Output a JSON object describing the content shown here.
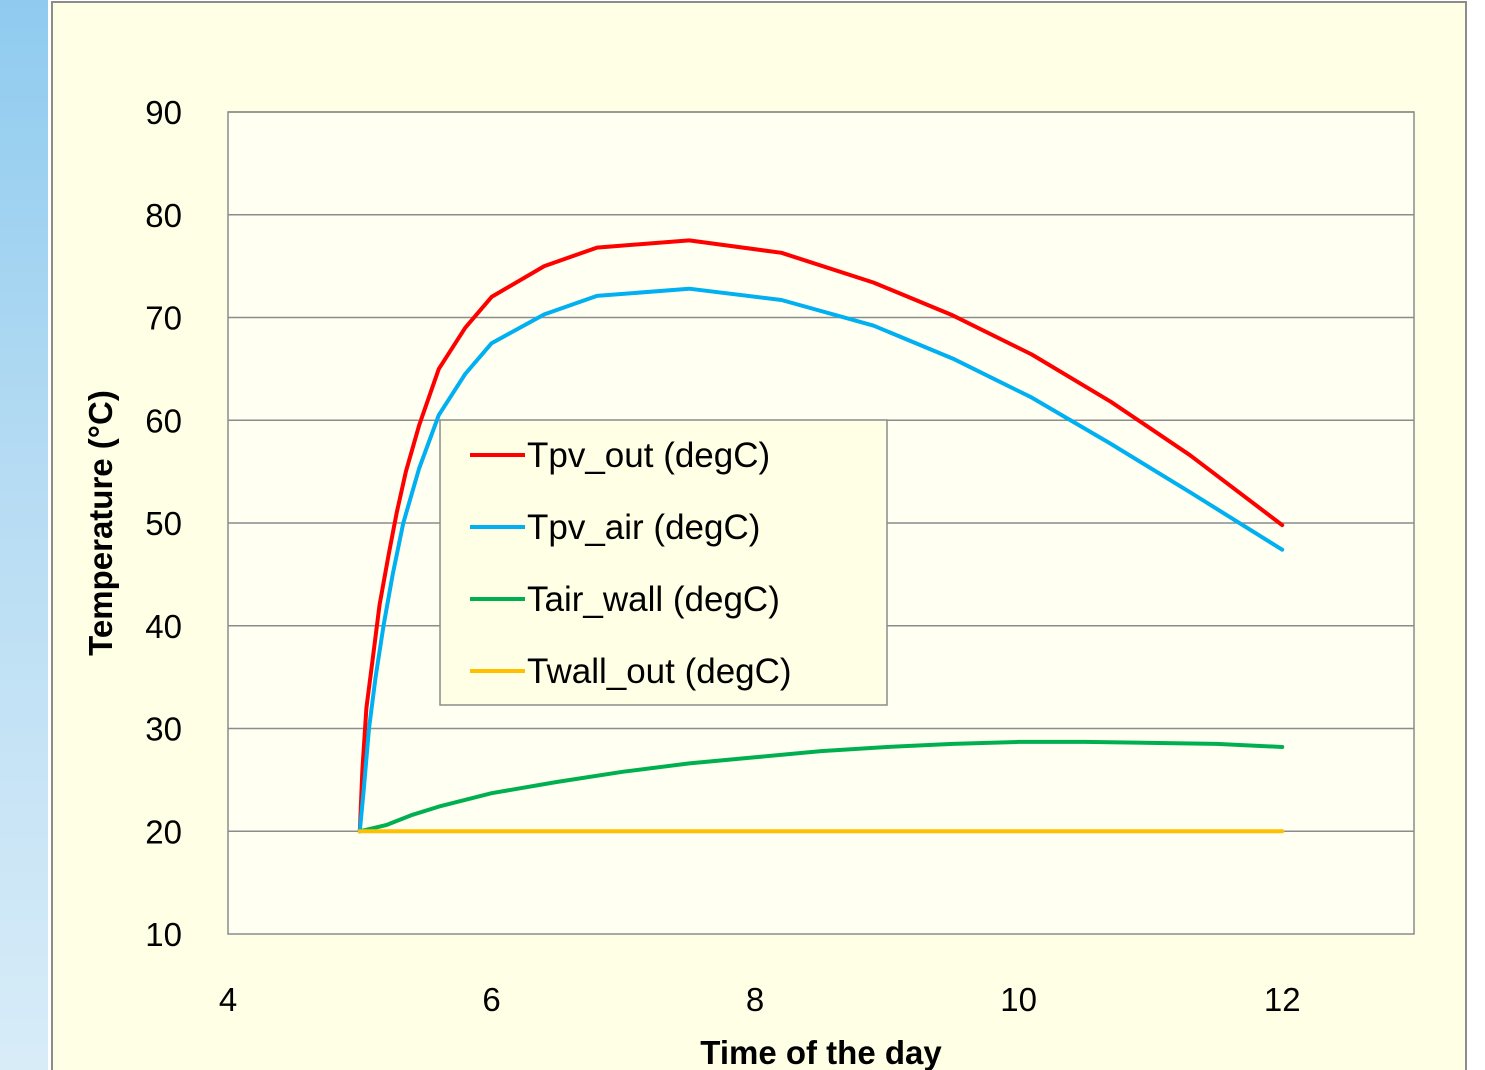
{
  "chart_data": {
    "type": "line",
    "title": "",
    "xlabel": "Time of the day",
    "ylabel": "Temperature (°C)",
    "xlim": [
      4,
      13
    ],
    "ylim": [
      10,
      90
    ],
    "xticks": [
      4,
      6,
      8,
      10,
      12
    ],
    "yticks": [
      10,
      20,
      30,
      40,
      50,
      60,
      70,
      80,
      90
    ],
    "grid": "horizontal",
    "legend_position": "center-left",
    "series": [
      {
        "name": "Tpv_out (degC)",
        "color": "#ff0000",
        "points": [
          [
            5.0,
            20
          ],
          [
            5.02,
            26
          ],
          [
            5.05,
            32
          ],
          [
            5.1,
            37
          ],
          [
            5.15,
            42
          ],
          [
            5.22,
            47
          ],
          [
            5.28,
            51
          ],
          [
            5.35,
            55
          ],
          [
            5.45,
            59.5
          ],
          [
            5.6,
            65
          ],
          [
            5.8,
            69
          ],
          [
            6.0,
            72
          ],
          [
            6.4,
            75
          ],
          [
            6.8,
            76.8
          ],
          [
            7.5,
            77.5
          ],
          [
            8.2,
            76.3
          ],
          [
            8.9,
            73.4
          ],
          [
            9.5,
            70.2
          ],
          [
            10.1,
            66.4
          ],
          [
            10.7,
            61.8
          ],
          [
            11.3,
            56.6
          ],
          [
            12.0,
            49.8
          ]
        ]
      },
      {
        "name": "Tpv_air (degC)",
        "color": "#00b0f0",
        "points": [
          [
            5.0,
            20
          ],
          [
            5.03,
            24
          ],
          [
            5.07,
            30
          ],
          [
            5.12,
            35
          ],
          [
            5.18,
            40
          ],
          [
            5.25,
            45
          ],
          [
            5.33,
            50
          ],
          [
            5.45,
            55.3
          ],
          [
            5.6,
            60.5
          ],
          [
            5.8,
            64.5
          ],
          [
            6.0,
            67.5
          ],
          [
            6.4,
            70.3
          ],
          [
            6.8,
            72.1
          ],
          [
            7.5,
            72.8
          ],
          [
            8.2,
            71.7
          ],
          [
            8.9,
            69.2
          ],
          [
            9.5,
            66.0
          ],
          [
            10.1,
            62.2
          ],
          [
            10.7,
            57.7
          ],
          [
            11.3,
            53.0
          ],
          [
            12.0,
            47.4
          ]
        ]
      },
      {
        "name": "Tair_wall (degC)",
        "color": "#00b050",
        "points": [
          [
            5.0,
            20
          ],
          [
            5.2,
            20.6
          ],
          [
            5.4,
            21.6
          ],
          [
            5.6,
            22.4
          ],
          [
            6.0,
            23.7
          ],
          [
            6.5,
            24.8
          ],
          [
            7.0,
            25.8
          ],
          [
            7.5,
            26.6
          ],
          [
            8.0,
            27.2
          ],
          [
            8.5,
            27.8
          ],
          [
            9.0,
            28.2
          ],
          [
            9.5,
            28.5
          ],
          [
            10.0,
            28.7
          ],
          [
            10.5,
            28.7
          ],
          [
            11.0,
            28.6
          ],
          [
            11.5,
            28.5
          ],
          [
            12.0,
            28.2
          ]
        ]
      },
      {
        "name": "Twall_out (degC)",
        "color": "#ffc000",
        "points": [
          [
            5.0,
            20
          ],
          [
            12.0,
            20
          ]
        ]
      }
    ]
  }
}
